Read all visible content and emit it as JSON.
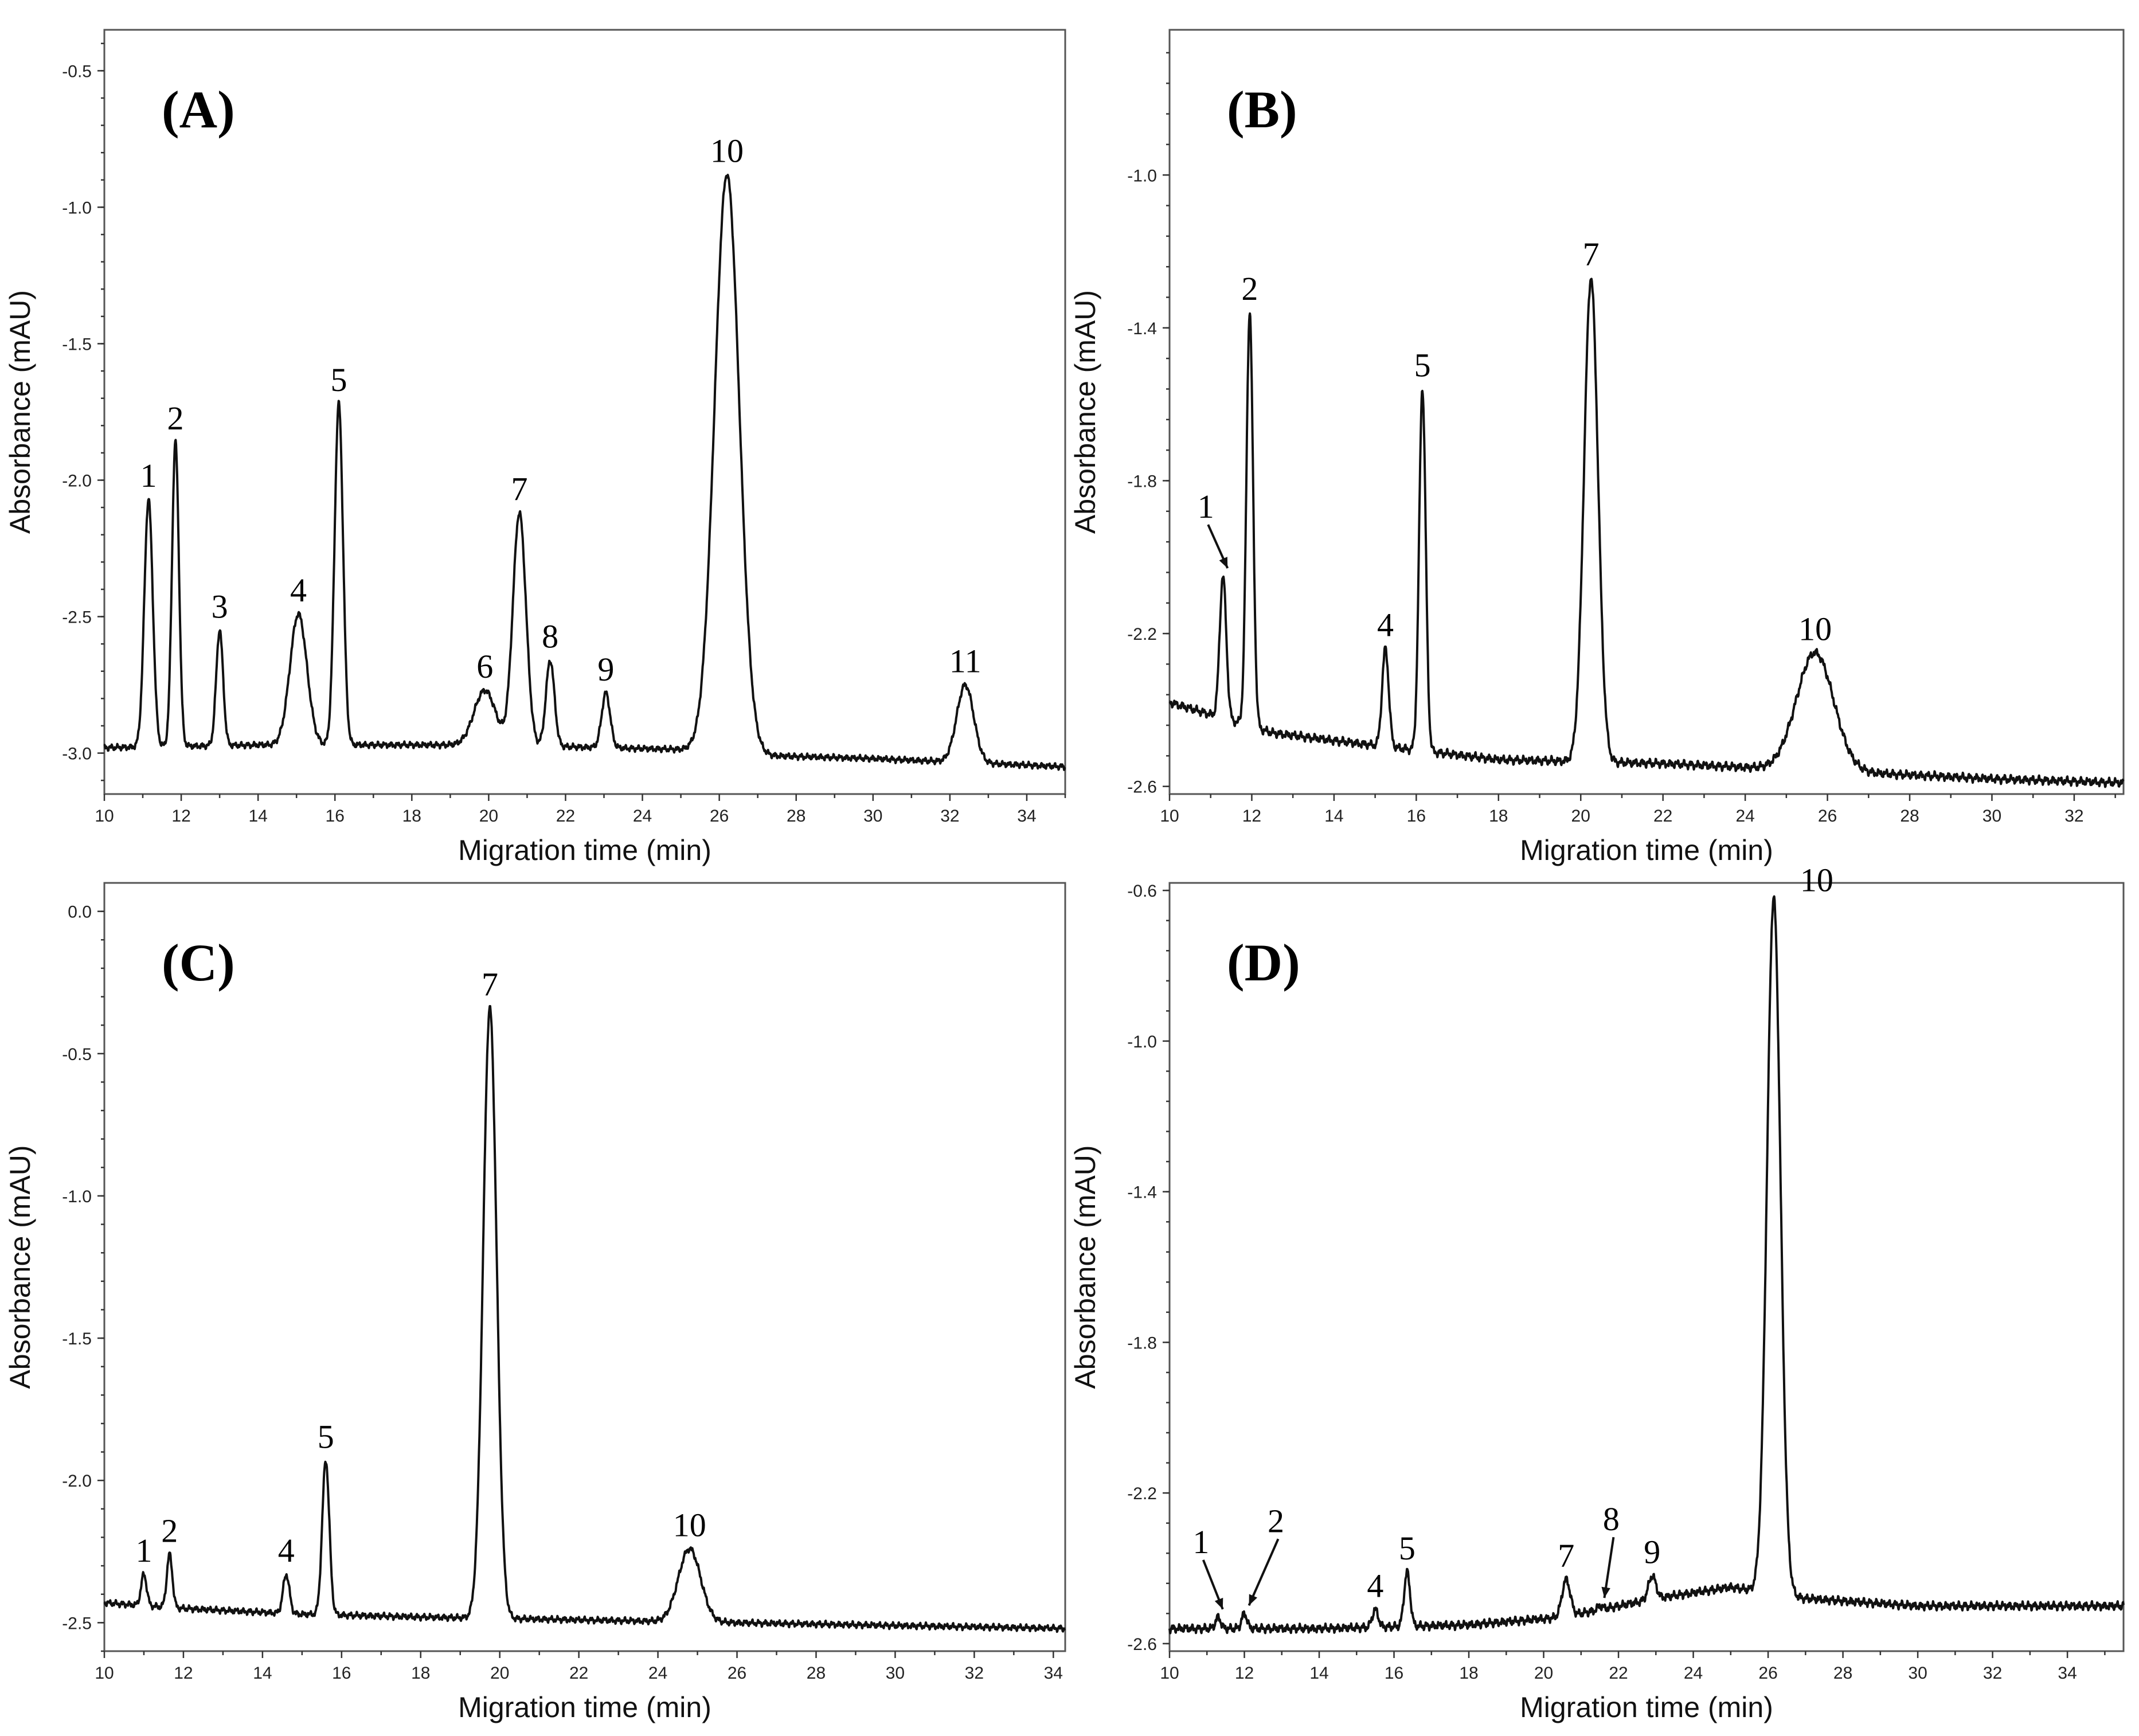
{
  "chart_data": [
    {
      "type": "line",
      "panel_label": "(A)",
      "xlabel": "Migration time (min)",
      "ylabel": "Absorbance (mAU)",
      "xlim": [
        10,
        35
      ],
      "ylim": [
        -3.15,
        -0.35
      ],
      "xticks": [
        10,
        12,
        14,
        16,
        18,
        20,
        22,
        24,
        26,
        28,
        30,
        32,
        34
      ],
      "yticks": [
        -3.0,
        -2.5,
        -2.0,
        -1.5,
        -1.0,
        -0.5
      ],
      "ytick_labels": [
        "-3.0",
        "-2.5",
        "-2.0",
        "-1.5",
        "-1.0",
        "-0.5"
      ],
      "baseline": [
        [
          10,
          -2.98
        ],
        [
          14,
          -2.97
        ],
        [
          20,
          -2.97
        ],
        [
          26,
          -2.99
        ],
        [
          27.4,
          -3.01
        ],
        [
          30,
          -3.02
        ],
        [
          35,
          -3.05
        ]
      ],
      "peaks": [
        {
          "label": "1",
          "t": 11.15,
          "height": -2.07,
          "width": 0.11
        },
        {
          "label": "2",
          "t": 11.85,
          "height": -1.86,
          "width": 0.09
        },
        {
          "label": "3",
          "t": 13.0,
          "height": -2.55,
          "width": 0.09
        },
        {
          "label": "4",
          "t": 15.05,
          "height": -2.49,
          "width": 0.22
        },
        {
          "label": "5",
          "t": 16.1,
          "height": -1.72,
          "width": 0.11
        },
        {
          "label": "6",
          "t": 19.9,
          "height": -2.77,
          "width": 0.28
        },
        {
          "label": "7",
          "t": 20.8,
          "height": -2.12,
          "width": 0.17
        },
        {
          "label": "8",
          "t": 21.6,
          "height": -2.66,
          "width": 0.11
        },
        {
          "label": "9",
          "t": 23.05,
          "height": -2.78,
          "width": 0.11
        },
        {
          "label": "10",
          "t": 26.2,
          "height": -0.88,
          "width": 0.32
        },
        {
          "label": "11",
          "t": 32.4,
          "height": -2.75,
          "width": 0.22
        }
      ]
    },
    {
      "type": "line",
      "panel_label": "(B)",
      "xlabel": "Migration time (min)",
      "ylabel": "Absorbance (mAU)",
      "xlim": [
        10,
        33.2
      ],
      "ylim": [
        -2.62,
        -0.62
      ],
      "xticks": [
        10,
        12,
        14,
        16,
        18,
        20,
        22,
        24,
        26,
        28,
        30,
        32
      ],
      "yticks": [
        -2.6,
        -2.2,
        -1.8,
        -1.4,
        -1.0
      ],
      "ytick_labels": [
        "-2.6",
        "-2.2",
        "-1.8",
        "-1.4",
        "-1.0"
      ],
      "baseline": [
        [
          10,
          -2.38
        ],
        [
          12.5,
          -2.46
        ],
        [
          14,
          -2.48
        ],
        [
          18,
          -2.53
        ],
        [
          22,
          -2.54
        ],
        [
          26,
          -2.56
        ],
        [
          30,
          -2.58
        ],
        [
          33,
          -2.59
        ]
      ],
      "peaks": [
        {
          "label": "1",
          "t": 11.3,
          "height": -2.05,
          "width": 0.08
        },
        {
          "label": "2",
          "t": 11.95,
          "height": -1.36,
          "width": 0.08
        },
        {
          "label": "4",
          "t": 15.25,
          "height": -2.24,
          "width": 0.08
        },
        {
          "label": "5",
          "t": 16.15,
          "height": -1.56,
          "width": 0.08
        },
        {
          "label": "7",
          "t": 20.25,
          "height": -1.27,
          "width": 0.17
        },
        {
          "label": "10",
          "t": 25.7,
          "height": -2.25,
          "width": 0.45
        }
      ]
    },
    {
      "type": "line",
      "panel_label": "(C)",
      "xlabel": "Migration time (min)",
      "ylabel": "Absorbance (mAU)",
      "xlim": [
        10,
        34.3
      ],
      "ylim": [
        -2.6,
        0.1
      ],
      "xticks": [
        10,
        12,
        14,
        16,
        18,
        20,
        22,
        24,
        26,
        28,
        30,
        32,
        34
      ],
      "yticks": [
        -2.5,
        -2.0,
        -1.5,
        -1.0,
        -0.5,
        0.0
      ],
      "ytick_labels": [
        "-2.5",
        "-2.0",
        "-1.5",
        "-1.0",
        "-0.5",
        "0.0"
      ],
      "baseline": [
        [
          10,
          -2.43
        ],
        [
          12,
          -2.45
        ],
        [
          15,
          -2.47
        ],
        [
          18,
          -2.48
        ],
        [
          22,
          -2.49
        ],
        [
          26,
          -2.5
        ],
        [
          30,
          -2.51
        ],
        [
          34.3,
          -2.52
        ]
      ],
      "peaks": [
        {
          "label": "1",
          "t": 11.0,
          "height": -2.33,
          "width": 0.07
        },
        {
          "label": "2",
          "t": 11.65,
          "height": -2.26,
          "width": 0.07
        },
        {
          "label": "4",
          "t": 14.6,
          "height": -2.33,
          "width": 0.08
        },
        {
          "label": "5",
          "t": 15.6,
          "height": -1.93,
          "width": 0.09
        },
        {
          "label": "7",
          "t": 19.75,
          "height": -0.34,
          "width": 0.17
        },
        {
          "label": "10",
          "t": 24.8,
          "height": -2.24,
          "width": 0.28
        }
      ]
    },
    {
      "type": "line",
      "panel_label": "(D)",
      "xlabel": "Migration time (min)",
      "ylabel": "Absorbance (mAU)",
      "xlim": [
        10,
        35.5
      ],
      "ylim": [
        -2.62,
        -0.58
      ],
      "xticks": [
        10,
        12,
        14,
        16,
        18,
        20,
        22,
        24,
        26,
        28,
        30,
        32,
        34
      ],
      "yticks": [
        -2.6,
        -2.2,
        -1.8,
        -1.4,
        -1.0,
        -0.6
      ],
      "ytick_labels": [
        "-2.6",
        "-2.2",
        "-1.8",
        "-1.4",
        "-1.0",
        "-0.6"
      ],
      "baseline": [
        [
          10,
          -2.56
        ],
        [
          14,
          -2.56
        ],
        [
          18,
          -2.55
        ],
        [
          20.5,
          -2.53
        ],
        [
          23,
          -2.48
        ],
        [
          25,
          -2.45
        ],
        [
          27,
          -2.48
        ],
        [
          30,
          -2.5
        ],
        [
          35.5,
          -2.5
        ]
      ],
      "peaks": [
        {
          "label": "1",
          "t": 11.3,
          "height": -2.53,
          "width": 0.07
        },
        {
          "label": "2",
          "t": 12.0,
          "height": -2.52,
          "width": 0.07
        },
        {
          "label": "4",
          "t": 15.5,
          "height": -2.51,
          "width": 0.08
        },
        {
          "label": "5",
          "t": 16.35,
          "height": -2.41,
          "width": 0.08
        },
        {
          "label": "7",
          "t": 20.6,
          "height": -2.43,
          "width": 0.11
        },
        {
          "label": "8",
          "t": 21.5,
          "height": -2.5,
          "width": 0.07
        },
        {
          "label": "9",
          "t": 22.9,
          "height": -2.42,
          "width": 0.1
        },
        {
          "label": "10",
          "t": 26.15,
          "height": -0.62,
          "width": 0.18
        }
      ]
    }
  ]
}
